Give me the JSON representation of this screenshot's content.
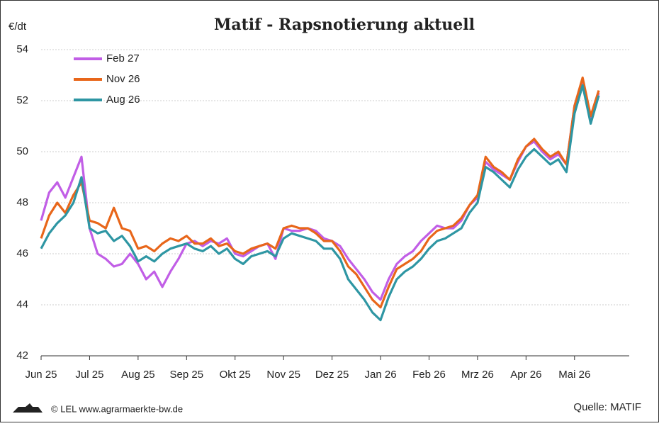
{
  "chart_data": {
    "type": "line",
    "title": "Matif - Rapsnotierung aktuell",
    "y_label": "€/dt",
    "credit": "© LEL www.agrarmaerkte-bw.de",
    "source": "Quelle: MATIF",
    "categories": [
      "Jun 25",
      null,
      null,
      null,
      null,
      null,
      "Jul 25",
      null,
      null,
      null,
      null,
      null,
      "Aug 25",
      null,
      null,
      null,
      null,
      null,
      "Sep 25",
      null,
      null,
      null,
      null,
      null,
      "Okt 25",
      null,
      null,
      null,
      null,
      null,
      "Nov 25",
      null,
      null,
      null,
      null,
      null,
      "Dez 25",
      null,
      null,
      null,
      null,
      null,
      "Jan 26",
      null,
      null,
      null,
      null,
      null,
      "Feb 26",
      null,
      null,
      null,
      null,
      null,
      "Mrz 26",
      null,
      null,
      null,
      null,
      null,
      "Apr 26",
      null,
      null,
      null,
      null,
      null,
      "Mai 26",
      null,
      null,
      null
    ],
    "series": [
      {
        "name": "Feb 27",
        "color": "#c15ee6",
        "values": [
          47.3,
          48.4,
          48.8,
          48.2,
          49.0,
          49.8,
          47.0,
          46.0,
          45.8,
          45.5,
          45.6,
          46.0,
          45.6,
          45.0,
          45.3,
          44.7,
          45.3,
          45.8,
          46.4,
          46.5,
          46.3,
          46.5,
          46.4,
          46.6,
          46.0,
          45.9,
          46.1,
          46.3,
          46.4,
          45.8,
          47.0,
          46.9,
          46.9,
          47.0,
          46.9,
          46.6,
          46.5,
          46.3,
          45.8,
          45.4,
          45.0,
          44.5,
          44.2,
          45.0,
          45.6,
          45.9,
          46.1,
          46.5,
          46.8,
          47.1,
          47.0,
          47.0,
          47.3,
          47.9,
          48.2,
          49.6,
          49.3,
          49.1,
          48.9,
          49.6,
          50.2,
          50.4,
          50.0,
          49.7,
          49.9,
          49.5,
          51.8,
          52.8,
          51.3,
          52.3
        ]
      },
      {
        "name": "Nov 26",
        "color": "#e8661a",
        "values": [
          46.6,
          47.5,
          48.0,
          47.6,
          48.3,
          48.8,
          47.3,
          47.2,
          47.0,
          47.8,
          47.0,
          46.9,
          46.2,
          46.3,
          46.1,
          46.4,
          46.6,
          46.5,
          46.7,
          46.4,
          46.4,
          46.6,
          46.3,
          46.4,
          46.1,
          46.0,
          46.2,
          46.3,
          46.4,
          46.2,
          47.0,
          47.1,
          47.0,
          47.0,
          46.8,
          46.5,
          46.5,
          46.1,
          45.5,
          45.2,
          44.7,
          44.2,
          43.9,
          44.7,
          45.4,
          45.6,
          45.8,
          46.1,
          46.6,
          46.9,
          47.0,
          47.1,
          47.4,
          47.9,
          48.3,
          49.8,
          49.4,
          49.2,
          48.9,
          49.7,
          50.2,
          50.5,
          50.1,
          49.8,
          50.0,
          49.5,
          51.8,
          52.9,
          51.4,
          52.4
        ]
      },
      {
        "name": "Aug 26",
        "color": "#2e96a3",
        "values": [
          46.2,
          46.8,
          47.2,
          47.5,
          48.0,
          49.0,
          47.0,
          46.8,
          46.9,
          46.5,
          46.7,
          46.3,
          45.7,
          45.9,
          45.7,
          46.0,
          46.2,
          46.3,
          46.4,
          46.2,
          46.1,
          46.3,
          46.0,
          46.2,
          45.8,
          45.6,
          45.9,
          46.0,
          46.1,
          45.9,
          46.6,
          46.8,
          46.7,
          46.6,
          46.5,
          46.2,
          46.2,
          45.8,
          45.0,
          44.6,
          44.2,
          43.7,
          43.4,
          44.3,
          45.0,
          45.3,
          45.5,
          45.8,
          46.2,
          46.5,
          46.6,
          46.8,
          47.0,
          47.6,
          48.0,
          49.4,
          49.2,
          48.9,
          48.6,
          49.3,
          49.8,
          50.1,
          49.8,
          49.5,
          49.7,
          49.2,
          51.5,
          52.6,
          51.1,
          52.2
        ]
      }
    ],
    "ylim": [
      42,
      54
    ],
    "yticks": [
      42,
      44,
      46,
      48,
      50,
      52,
      54
    ],
    "grid": true,
    "legend": "top-left"
  }
}
